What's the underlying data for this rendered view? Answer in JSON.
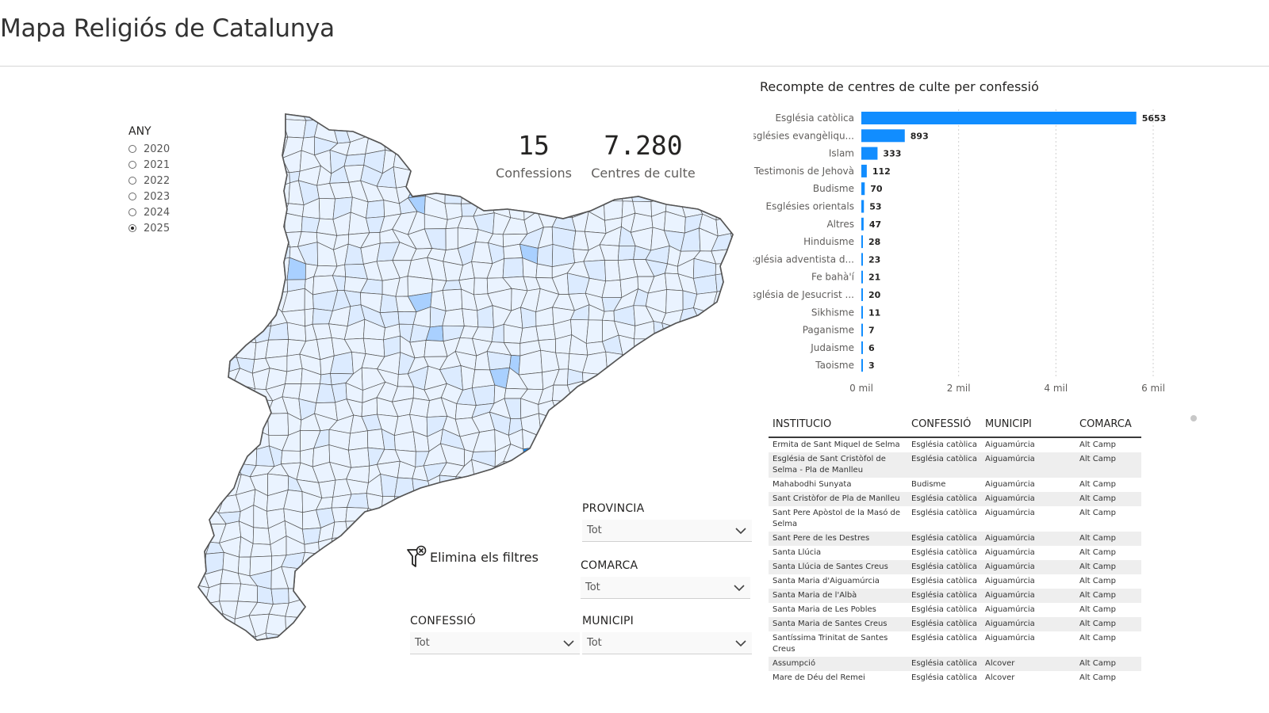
{
  "page": {
    "title": "Mapa Religiós de Catalunya"
  },
  "year_slicer": {
    "title": "ANY",
    "options": [
      "2020",
      "2021",
      "2022",
      "2023",
      "2024",
      "2025"
    ],
    "selected": "2025"
  },
  "kpis": {
    "confessions": {
      "value": "15",
      "label": "Confessions"
    },
    "centres": {
      "value": "7.280",
      "label": "Centres de culte"
    }
  },
  "chart_data": {
    "type": "bar",
    "orientation": "horizontal",
    "title": "Recompte de centres de culte per confessió",
    "categories": [
      "Església catòlica",
      "Esglésies evangèliqu...",
      "Islam",
      "Testimonis de Jehovà",
      "Budisme",
      "Esglésies orientals",
      "Altres",
      "Hinduisme",
      "Església adventista d...",
      "Fe bahà'í",
      "Església de Jesucrist ...",
      "Sikhisme",
      "Paganisme",
      "Judaisme",
      "Taoisme"
    ],
    "values": [
      5653,
      893,
      333,
      112,
      70,
      53,
      47,
      28,
      23,
      21,
      20,
      11,
      7,
      6,
      3
    ],
    "xlim": [
      0,
      6000
    ],
    "x_ticks": [
      0,
      2000,
      4000,
      6000
    ],
    "x_tick_labels": [
      "0 mil",
      "2 mil",
      "4 mil",
      "6 mil"
    ],
    "color": "#118DFF",
    "gridlines": "vertical dotted",
    "data_labels": true
  },
  "table": {
    "columns": [
      "INSTITUCIO",
      "CONFESSIÓ",
      "MUNICIPI",
      "COMARCA"
    ],
    "rows": [
      [
        "Ermita de Sant Miquel de Selma",
        "Església catòlica",
        "Aiguamúrcia",
        "Alt Camp"
      ],
      [
        "Església de Sant Cristòfol de Selma - Pla de Manlleu",
        "Església catòlica",
        "Aiguamúrcia",
        "Alt Camp"
      ],
      [
        "Mahabodhi Sunyata",
        "Budisme",
        "Aiguamúrcia",
        "Alt Camp"
      ],
      [
        "Sant Cristòfor de Pla de Manlleu",
        "Església catòlica",
        "Aiguamúrcia",
        "Alt Camp"
      ],
      [
        "Sant Pere Apòstol de la Masó de Selma",
        "Església catòlica",
        "Aiguamúrcia",
        "Alt Camp"
      ],
      [
        "Sant Pere de les Destres",
        "Església catòlica",
        "Aiguamúrcia",
        "Alt Camp"
      ],
      [
        "Santa Llúcia",
        "Església catòlica",
        "Aiguamúrcia",
        "Alt Camp"
      ],
      [
        "Santa Llúcia de Santes Creus",
        "Església catòlica",
        "Aiguamúrcia",
        "Alt Camp"
      ],
      [
        "Santa Maria d'Aiguamúrcia",
        "Església catòlica",
        "Aiguamúrcia",
        "Alt Camp"
      ],
      [
        "Santa Maria de l'Albà",
        "Església catòlica",
        "Aiguamúrcia",
        "Alt Camp"
      ],
      [
        "Santa Maria de Les Pobles",
        "Església catòlica",
        "Aiguamúrcia",
        "Alt Camp"
      ],
      [
        "Santa Maria de Santes Creus",
        "Església catòlica",
        "Aiguamúrcia",
        "Alt Camp"
      ],
      [
        "Santíssima Trinitat de Santes Creus",
        "Església catòlica",
        "Aiguamúrcia",
        "Alt Camp"
      ],
      [
        "Assumpció",
        "Església catòlica",
        "Alcover",
        "Alt Camp"
      ],
      [
        "Mare de Déu del Remei",
        "Església catòlica",
        "Alcover",
        "Alt Camp"
      ]
    ]
  },
  "clear_filters": {
    "label": "Elimina els filtres",
    "icon": "filter-clear-icon"
  },
  "dropdowns": {
    "provincia": {
      "title": "PROVINCIA",
      "value": "Tot"
    },
    "comarca": {
      "title": "COMARCA",
      "value": "Tot"
    },
    "confessio": {
      "title": "CONFESSIÓ",
      "value": "Tot"
    },
    "municipi": {
      "title": "MUNICIPI",
      "value": "Tot"
    }
  },
  "map": {
    "fill_light": "#EAF3FF",
    "fill_mid": "#A9D0FF",
    "fill_dark": "#118DFF",
    "stroke": "#555555"
  }
}
